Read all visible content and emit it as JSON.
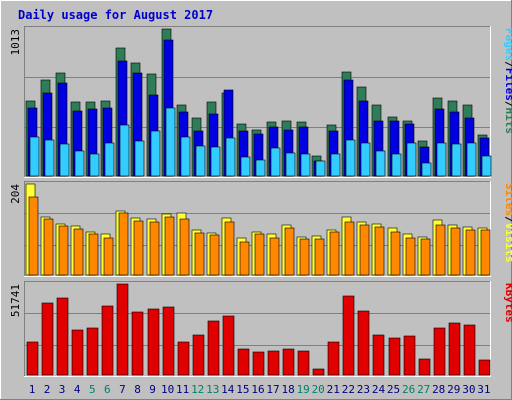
{
  "chart_data": {
    "type": "bar",
    "title": "Daily usage for August 2017",
    "colors": {
      "background": "#c0c0c0",
      "hits": "#2e7d58",
      "files": "#0000e0",
      "pages": "#33ccff",
      "visits": "#ffff33",
      "sites": "#ff8800",
      "kbytes": "#e00000",
      "title": "#0000cc",
      "weekend_label": "#00806a",
      "weekday_label": "#000080"
    },
    "categories": [
      "1",
      "2",
      "3",
      "4",
      "5",
      "6",
      "7",
      "8",
      "9",
      "10",
      "11",
      "12",
      "13",
      "14",
      "15",
      "16",
      "17",
      "18",
      "19",
      "20",
      "21",
      "22",
      "23",
      "24",
      "25",
      "26",
      "27",
      "28",
      "29",
      "30",
      "31"
    ],
    "weekend_days": [
      "5",
      "6",
      "12",
      "13",
      "19",
      "20",
      "26",
      "27"
    ],
    "panels": [
      {
        "name": "hits_files_pages",
        "ytick": "1013",
        "ylim": [
          0,
          1013
        ],
        "legend": [
          {
            "label": "Hits",
            "color": "#2e7d58"
          },
          {
            "label": "/",
            "color": "#000000"
          },
          {
            "label": "Files",
            "color": "#0000e0"
          },
          {
            "label": "/",
            "color": "#000000"
          },
          {
            "label": "Pages",
            "color": "#33ccff"
          }
        ],
        "series": [
          {
            "name": "Hits",
            "color": "#2e7d58",
            "values": [
              520,
              660,
              710,
              510,
              510,
              520,
              880,
              780,
              700,
              1013,
              490,
              400,
              510,
              570,
              360,
              320,
              370,
              380,
              370,
              140,
              350,
              720,
              610,
              490,
              410,
              380,
              240,
              540,
              520,
              490,
              280
            ]
          },
          {
            "name": "Files",
            "color": "#0000e0",
            "values": [
              470,
              570,
              640,
              450,
              460,
              470,
              790,
              710,
              560,
              940,
              440,
              310,
              430,
              590,
              310,
              290,
              340,
              320,
              340,
              100,
              310,
              660,
              520,
              380,
              380,
              360,
              200,
              460,
              440,
              400,
              260
            ]
          },
          {
            "name": "Pages",
            "color": "#33ccff",
            "values": [
              270,
              250,
              220,
              170,
              150,
              230,
              350,
              240,
              310,
              470,
              270,
              210,
              200,
              260,
              130,
              110,
              190,
              160,
              150,
              100,
              150,
              250,
              230,
              170,
              150,
              230,
              90,
              230,
              220,
              230,
              140
            ]
          }
        ]
      },
      {
        "name": "visits_sites",
        "ytick": "204",
        "ylim": [
          0,
          204
        ],
        "legend": [
          {
            "label": "Visits",
            "color": "#ffff33"
          },
          {
            "label": "/",
            "color": "#000000"
          },
          {
            "label": "Sites",
            "color": "#ff8800"
          }
        ],
        "series": [
          {
            "name": "Visits",
            "color": "#ffff33",
            "values": [
              204,
              131,
              114,
              109,
              96,
              92,
              144,
              128,
              126,
              136,
              138,
              100,
              94,
              127,
              82,
              97,
              93,
              113,
              86,
              88,
              100,
              129,
              118,
              115,
              105,
              91,
              86,
              123,
              111,
              107,
              105
            ]
          },
          {
            "name": "Sites",
            "color": "#ff8800",
            "values": [
              174,
              126,
              109,
              104,
              93,
              84,
              138,
              122,
              118,
              130,
              125,
              95,
              89,
              119,
              74,
              91,
              84,
              106,
              81,
              80,
              96,
              118,
              113,
              108,
              96,
              84,
              80,
              111,
              106,
              101,
              100
            ]
          }
        ]
      },
      {
        "name": "kbytes",
        "ytick": "51741",
        "ylim": [
          0,
          51741
        ],
        "legend": [
          {
            "label": "KBytes",
            "color": "#e00000"
          }
        ],
        "series": [
          {
            "name": "KBytes",
            "color": "#e00000",
            "values": [
              19000,
              41000,
              43500,
              25500,
              27000,
              39000,
              51741,
              36000,
              37500,
              38500,
              19000,
              22500,
              30500,
              33500,
              14500,
              13000,
              13500,
              14500,
              13500,
              3500,
              19000,
              45000,
              36500,
              23000,
              21000,
              22000,
              9000,
              26500,
              29500,
              28500,
              8500
            ]
          }
        ]
      }
    ]
  }
}
